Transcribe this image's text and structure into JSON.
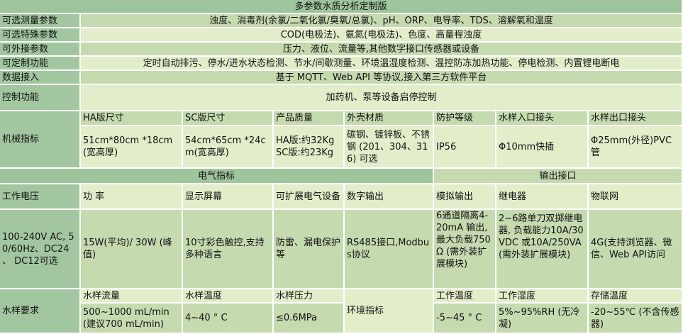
{
  "title": "多参数水质分析定制版",
  "params": [
    {
      "label": "可选测量参数",
      "value": "浊度、消毒剂(余氯/二氧化氯/臭氧/总氯)、pH、ORP、电导率、TDS、溶解氧和温度"
    },
    {
      "label": "可选特殊参数",
      "value": "COD(电极法)、氨氮(电极法)、色度、高量程浊度"
    },
    {
      "label": "可外接参数",
      "value": "压力、液位、流量等,其他数字接口传感器或设备"
    },
    {
      "label": "可定制功能",
      "value": "定时自动排污、停水/进水状态检测、节水/间歇测量、环境温湿度检测、温控防冻加热功能、停电检测、内置锂电断电"
    },
    {
      "label": "数据接入",
      "value": "基于 MQTT、Web API 等协议,接入第三方软件平台"
    },
    {
      "label": "控制功能",
      "value": "加药机、泵等设备启停控制"
    }
  ],
  "mechanical": {
    "label": "机械指标",
    "headers": [
      "HA版尺寸",
      "SC版尺寸",
      "产品质量",
      "外壳材质",
      "防护等级",
      "水样入口接头",
      "水样出口接头"
    ],
    "values": [
      "51cm*80cm *18cm(宽高厚)",
      "54cm*65cm *24cm(宽高厚)",
      "HA版:约32Kg SC版:约23Kg",
      "碳钢、镀锌板、不锈钢 (201、304、316) 可选",
      "IP56",
      "Φ10mm快插",
      "Φ25mm(外径)PVC管"
    ]
  },
  "electrical": {
    "title": "电气指标",
    "output_title": "输出接口",
    "label": "工作电压",
    "headers": [
      "功 率",
      "显示屏幕",
      "可扩展电气设备",
      "数字输出",
      "模拟输出",
      "继电器",
      "物联网"
    ],
    "voltage_value": "100-240V AC, 50/60Hz、DC24 、 DC12可选",
    "values": [
      "15W(平均)/ 30W (峰值)",
      "10寸彩色触控,支持多种语言",
      "防雷、漏电保护等",
      "RS485接口,Modbus协议",
      "6通道隔离4-20mA 输出,最大负载750Ω (需外装扩展模块)",
      "2~6路单刀双掷继电器, 负载能力10A/30VDC 或10A/250VA (需外装扩展模块)",
      "4G(支持浏览器、微信、Web API访问"
    ]
  },
  "sample": {
    "label": "水样要求",
    "headers": [
      "水样流量",
      "水样温度",
      "水样压力"
    ],
    "values": [
      "500~1000 mL/min (建议700 mL/min)",
      "4~40 ° C",
      "≤0.6MPa"
    ],
    "env_label": "环境指标",
    "env_headers": [
      "工作温度",
      "工作湿度",
      "存储温度"
    ],
    "env_values": [
      "-5~45 ° C",
      "5%~95%RH (无冷凝)",
      "-20~55℃ (不含传感器)"
    ]
  },
  "colors": {
    "header_green": "#9ec59c",
    "label_green": "#a2c7a0",
    "row_dark": "#c6dab0",
    "row_light": "#e2edca"
  }
}
